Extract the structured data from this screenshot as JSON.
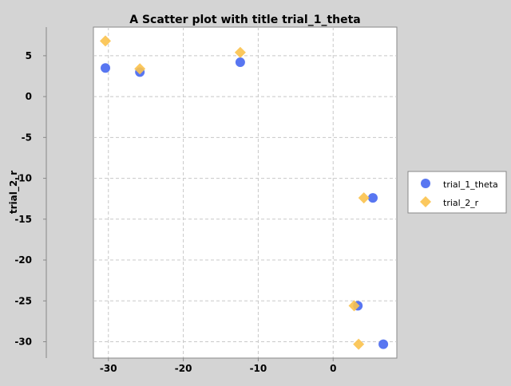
{
  "chart_data": {
    "type": "scatter",
    "title": "A Scatter plot with title trial_1_theta",
    "xlabel": "",
    "ylabel": "trial_2_r",
    "xlim": [
      -32,
      8.5
    ],
    "ylim": [
      -32,
      8.5
    ],
    "x_ticks": [
      -30,
      -20,
      -10,
      0
    ],
    "y_ticks": [
      5,
      0,
      -5,
      -10,
      -15,
      -20,
      -25,
      -30
    ],
    "grid": true,
    "legend_position": "right",
    "series": [
      {
        "name": "trial_1_theta",
        "marker": "circle",
        "color": "#4f6ff0",
        "points": [
          {
            "x": -30.4,
            "y": 3.5
          },
          {
            "x": -25.8,
            "y": 3.0
          },
          {
            "x": -12.4,
            "y": 4.2
          },
          {
            "x": 5.3,
            "y": -12.4
          },
          {
            "x": 3.3,
            "y": -25.6
          },
          {
            "x": 6.7,
            "y": -30.3
          }
        ]
      },
      {
        "name": "trial_2_r",
        "marker": "diamond",
        "color": "#fbc24c",
        "points": [
          {
            "x": -30.4,
            "y": 6.8
          },
          {
            "x": -25.8,
            "y": 3.4
          },
          {
            "x": -12.4,
            "y": 5.4
          },
          {
            "x": 4.1,
            "y": -12.4
          },
          {
            "x": 2.8,
            "y": -25.6
          },
          {
            "x": 3.4,
            "y": -30.3
          }
        ]
      }
    ]
  }
}
